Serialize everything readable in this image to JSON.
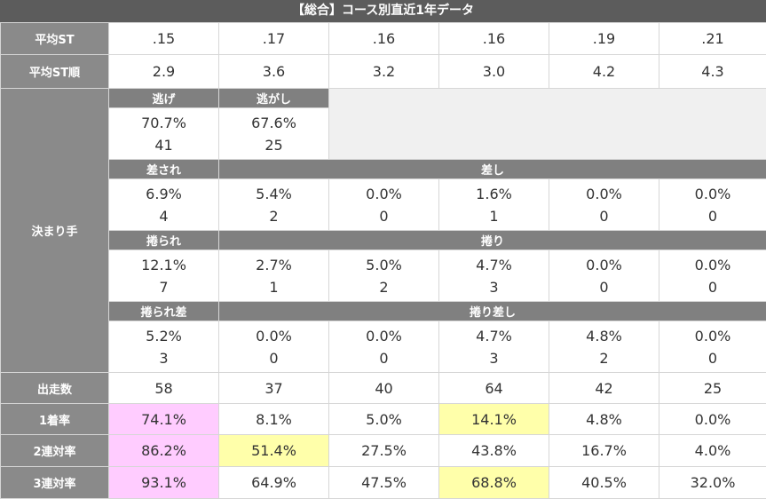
{
  "title": "【総合】コース別直近1年データ",
  "labels": {
    "avg_st": "平均ST",
    "avg_st_rank": "平均ST順",
    "kimarite": "決まり手",
    "starts": "出走数",
    "win_rate": "1着率",
    "top2_rate": "2連対率",
    "top3_rate": "3連対率"
  },
  "avg_st": [
    ".15",
    ".17",
    ".16",
    ".16",
    ".19",
    ".21"
  ],
  "avg_st_rank": [
    "2.9",
    "3.6",
    "3.2",
    "3.0",
    "4.2",
    "4.3"
  ],
  "kimarite": {
    "nige_label": "逃げ",
    "nigashi_label": "逃がし",
    "nige": {
      "pct": "70.7%",
      "count": "41"
    },
    "nigashi": {
      "pct": "67.6%",
      "count": "25"
    },
    "sasare_label": "差され",
    "sashi_label": "差し",
    "sashi_row": [
      {
        "pct": "6.9%",
        "count": "4"
      },
      {
        "pct": "5.4%",
        "count": "2"
      },
      {
        "pct": "0.0%",
        "count": "0"
      },
      {
        "pct": "1.6%",
        "count": "1"
      },
      {
        "pct": "0.0%",
        "count": "0"
      },
      {
        "pct": "0.0%",
        "count": "0"
      }
    ],
    "makurare_label": "捲られ",
    "makuri_label": "捲り",
    "makuri_row": [
      {
        "pct": "12.1%",
        "count": "7"
      },
      {
        "pct": "2.7%",
        "count": "1"
      },
      {
        "pct": "5.0%",
        "count": "2"
      },
      {
        "pct": "4.7%",
        "count": "3"
      },
      {
        "pct": "0.0%",
        "count": "0"
      },
      {
        "pct": "0.0%",
        "count": "0"
      }
    ],
    "makurare_sashi_label": "捲られ差",
    "makuri_sashi_label": "捲り差し",
    "makuri_sashi_row": [
      {
        "pct": "5.2%",
        "count": "3"
      },
      {
        "pct": "0.0%",
        "count": "0"
      },
      {
        "pct": "0.0%",
        "count": "0"
      },
      {
        "pct": "4.7%",
        "count": "3"
      },
      {
        "pct": "4.8%",
        "count": "2"
      },
      {
        "pct": "0.0%",
        "count": "0"
      }
    ]
  },
  "starts": [
    "58",
    "37",
    "40",
    "64",
    "42",
    "25"
  ],
  "win_rate": [
    "74.1%",
    "8.1%",
    "5.0%",
    "14.1%",
    "4.8%",
    "0.0%"
  ],
  "top2_rate": [
    "86.2%",
    "51.4%",
    "27.5%",
    "43.8%",
    "16.7%",
    "4.0%"
  ],
  "top3_rate": [
    "93.1%",
    "64.9%",
    "47.5%",
    "68.8%",
    "40.5%",
    "32.0%"
  ],
  "highlight_colors": {
    "first": "#ffccff",
    "second": "#ffffaa"
  }
}
